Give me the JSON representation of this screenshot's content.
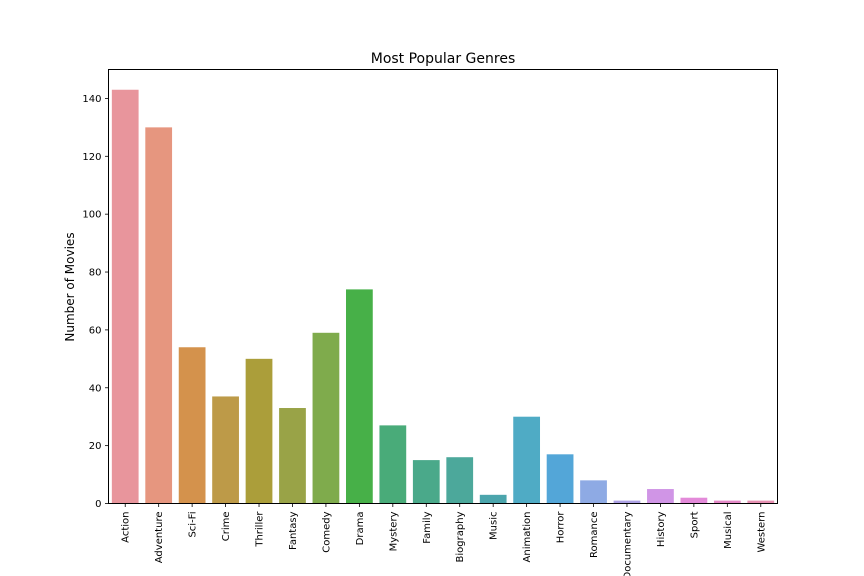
{
  "chart_data": {
    "type": "bar",
    "title": "Most Popular Genres",
    "xlabel": "",
    "ylabel": "Number of Movies",
    "ylim": [
      0,
      150
    ],
    "yticks": [
      0,
      20,
      40,
      60,
      80,
      100,
      120,
      140
    ],
    "grid": false,
    "legend": "none",
    "categories": [
      "Action",
      "Adventure",
      "Sci-Fi",
      "Crime",
      "Thriller",
      "Fantasy",
      "Comedy",
      "Drama",
      "Mystery",
      "Family",
      "Biography",
      "Music",
      "Animation",
      "Horror",
      "Romance",
      "Documentary",
      "History",
      "Sport",
      "Musical",
      "Western"
    ],
    "values": [
      143,
      130,
      54,
      37,
      50,
      33,
      59,
      74,
      27,
      15,
      16,
      3,
      30,
      17,
      8,
      1,
      5,
      2,
      1,
      1
    ],
    "colors": [
      "#e8959c",
      "#e6967f",
      "#d4924c",
      "#bd9a48",
      "#ab9e3a",
      "#99a347",
      "#7fab4c",
      "#47b048",
      "#49ab79",
      "#4aa98a",
      "#4ca89b",
      "#4ba5ac",
      "#4fabc5",
      "#53a6d8",
      "#8eaae4",
      "#ada1e4",
      "#d095e6",
      "#e38ad9",
      "#e489c7",
      "#e690b2"
    ]
  }
}
